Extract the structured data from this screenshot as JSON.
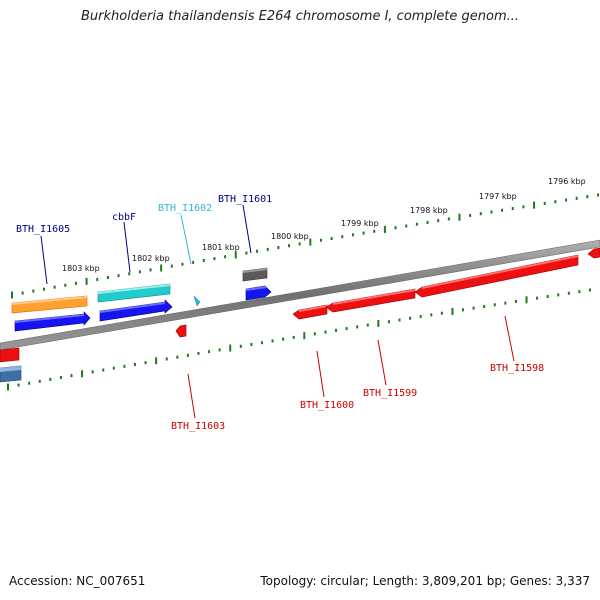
{
  "title": "Burkholderia thailandensis E264 chromosome I, complete genom...",
  "footer": {
    "accession": "Accession: NC_007651",
    "summary": "Topology: circular; Length: 3,809,201 bp; Genes: 3,337"
  },
  "colors": {
    "ticks": "#1e7a1e",
    "backbone": "#808080",
    "label_default": "#000080",
    "label_cbbf": "#000080",
    "label_cyan": "#33b5d8",
    "label_reverse": "#cc0000",
    "gene_orange": "#ff8c00",
    "gene_blue": "#0000ee",
    "gene_cyan": "#22cccc",
    "gene_gray": "#555555",
    "gene_red": "#ee0000",
    "gene_steel": "#4477aa"
  },
  "scale_labels": [
    "1803 kbp",
    "1802 kbp",
    "1801 kbp",
    "1800 kbp",
    "1799 kbp",
    "1798 kbp",
    "1797 kbp",
    "1796 kbp"
  ],
  "gene_labels": [
    {
      "id": "bth-i1605",
      "text": "BTH_I1605",
      "color": "label_default"
    },
    {
      "id": "cbbf",
      "text": "cbbF",
      "color": "label_cbbf"
    },
    {
      "id": "bth-i1602",
      "text": "BTH_I1602",
      "color": "label_cyan"
    },
    {
      "id": "bth-i1601",
      "text": "BTH_I1601",
      "color": "label_default"
    },
    {
      "id": "bth-i1603",
      "text": "BTH_I1603",
      "color": "label_reverse"
    },
    {
      "id": "bth-i1600",
      "text": "BTH_I1600",
      "color": "label_reverse"
    },
    {
      "id": "bth-i1599",
      "text": "BTH_I1599",
      "color": "label_reverse"
    },
    {
      "id": "bth-i1598",
      "text": "BTH_I1598",
      "color": "label_reverse"
    }
  ]
}
